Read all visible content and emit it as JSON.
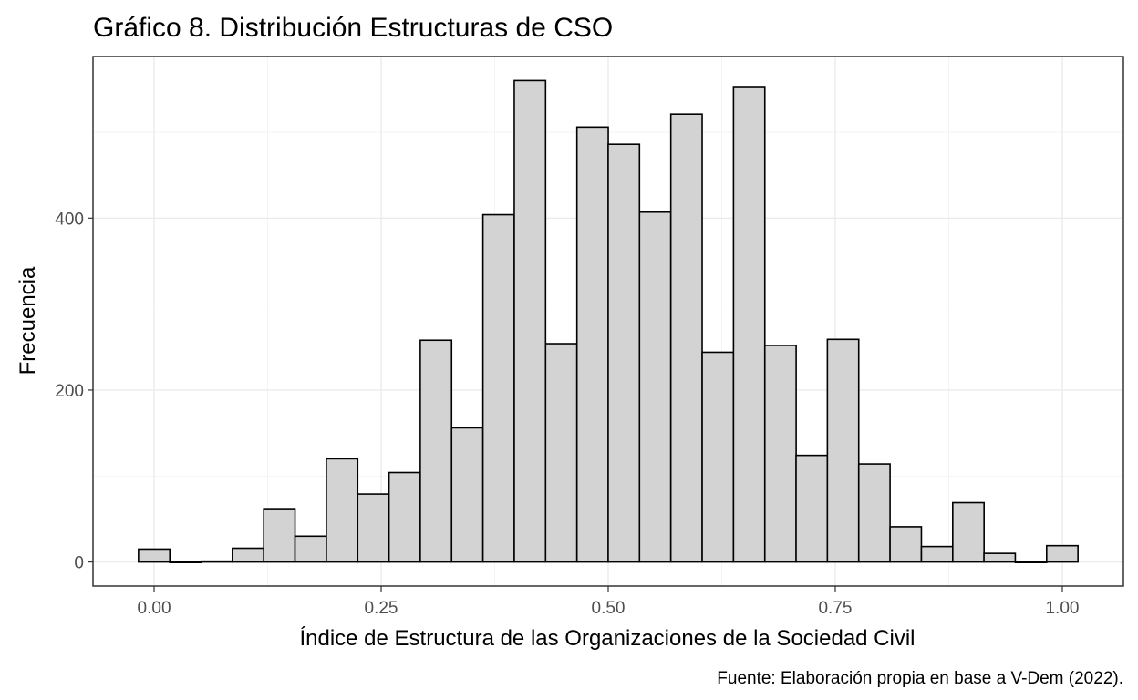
{
  "chart_data": {
    "type": "bar",
    "title": "Gráfico 8. Distribución Estructuras de CSO",
    "xlabel": "Índice de Estructura de las Organizaciones de la Sociedad Civil",
    "ylabel": "Frecuencia",
    "caption": "Fuente: Elaboración propia en base a V-Dem (2022).",
    "bin_width": 0.0345,
    "bin_centers": [
      0.0,
      0.0345,
      0.069,
      0.1034,
      0.1379,
      0.1724,
      0.2069,
      0.2414,
      0.2759,
      0.3103,
      0.3448,
      0.3793,
      0.4138,
      0.4483,
      0.4828,
      0.5172,
      0.5517,
      0.5862,
      0.6207,
      0.6552,
      0.6897,
      0.7241,
      0.7586,
      0.7931,
      0.8276,
      0.8621,
      0.8966,
      0.931,
      0.9655,
      1.0
    ],
    "values": [
      15,
      0,
      1,
      16,
      62,
      30,
      120,
      79,
      104,
      258,
      156,
      404,
      560,
      254,
      506,
      486,
      407,
      521,
      244,
      553,
      252,
      124,
      259,
      114,
      41,
      18,
      69,
      10,
      0,
      19
    ],
    "x_ticks": [
      0.0,
      0.25,
      0.5,
      0.75,
      1.0
    ],
    "x_tick_labels": [
      "0.00",
      "0.25",
      "0.50",
      "0.75",
      "1.00"
    ],
    "y_ticks": [
      0,
      200,
      400
    ],
    "y_tick_labels": [
      "0",
      "200",
      "400"
    ],
    "xlim": [
      -0.0673,
      1.0673
    ],
    "ylim": [
      -28,
      588
    ],
    "bar_fill": "#d3d3d3",
    "bar_outline": "#000000",
    "grid": true
  }
}
